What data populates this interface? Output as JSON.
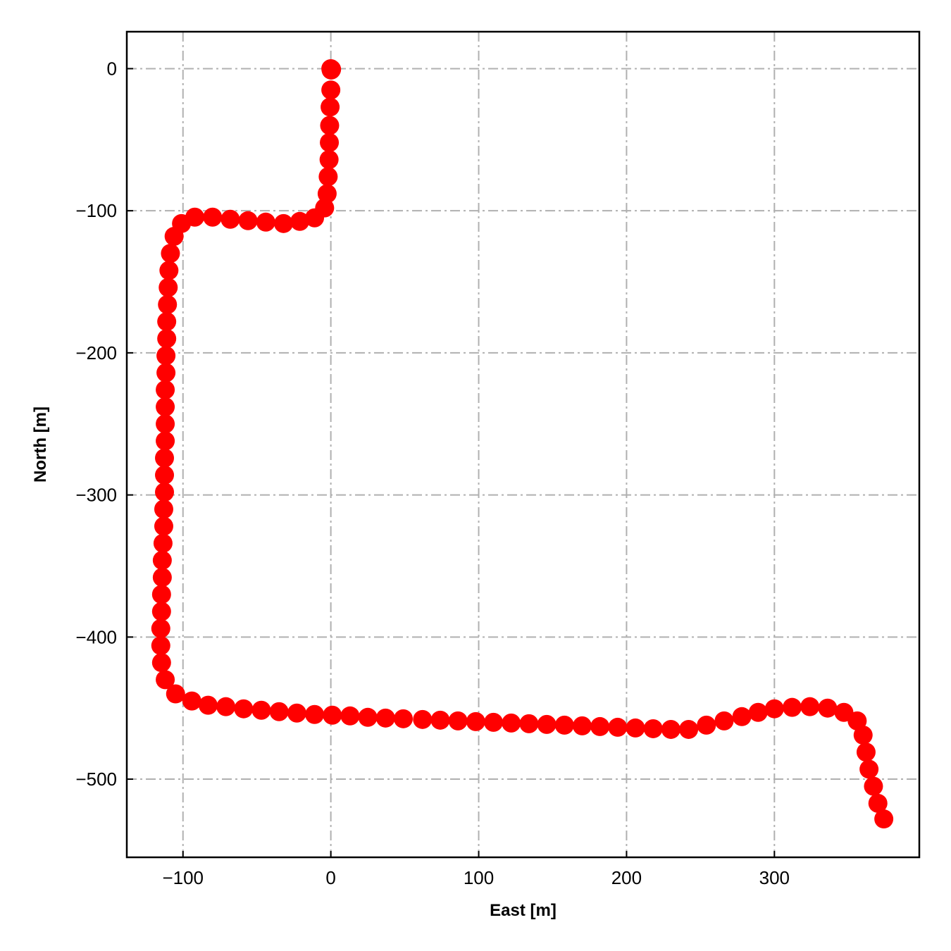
{
  "chart_data": {
    "type": "scatter",
    "title": "",
    "xlabel": "East [m]",
    "ylabel": "North [m]",
    "xlim": [
      -138,
      398
    ],
    "ylim": [
      -555,
      26
    ],
    "xticks": [
      -100,
      0,
      100,
      200,
      300
    ],
    "yticks": [
      0,
      -100,
      -200,
      -300,
      -400,
      -500
    ],
    "grid": true,
    "grid_style": "dash-dot",
    "marker_color": "#ff0000",
    "grid_color": "#b0b0b0",
    "series": [
      {
        "points": [
          [
            0,
            0
          ],
          [
            0.5,
            -0.5
          ],
          [
            0.2,
            -1
          ],
          [
            0,
            -15
          ],
          [
            -0.5,
            -27
          ],
          [
            -0.8,
            -40
          ],
          [
            -1,
            -52
          ],
          [
            -1.2,
            -64
          ],
          [
            -1.8,
            -76
          ],
          [
            -2.5,
            -88
          ],
          [
            -4.2,
            -98
          ],
          [
            -11,
            -105
          ],
          [
            -21,
            -107.5
          ],
          [
            -32,
            -109
          ],
          [
            -44,
            -108
          ],
          [
            -56,
            -107
          ],
          [
            -68,
            -106
          ],
          [
            -80,
            -104.5
          ],
          [
            -92,
            -104.5
          ],
          [
            -101,
            -109
          ],
          [
            -106,
            -118
          ],
          [
            -108.5,
            -130
          ],
          [
            -109.5,
            -142
          ],
          [
            -110,
            -154
          ],
          [
            -110.5,
            -166
          ],
          [
            -111,
            -178
          ],
          [
            -111,
            -190
          ],
          [
            -111.5,
            -202
          ],
          [
            -111.5,
            -214
          ],
          [
            -112,
            -226
          ],
          [
            -112,
            -238
          ],
          [
            -112,
            -250
          ],
          [
            -112,
            -262
          ],
          [
            -112.5,
            -274
          ],
          [
            -112.5,
            -286
          ],
          [
            -112.5,
            -298
          ],
          [
            -113,
            -310
          ],
          [
            -113,
            -322
          ],
          [
            -113.5,
            -334
          ],
          [
            -114,
            -346
          ],
          [
            -114,
            -358
          ],
          [
            -114.5,
            -370
          ],
          [
            -114.5,
            -382
          ],
          [
            -115,
            -394
          ],
          [
            -115,
            -406
          ],
          [
            -114.5,
            -418
          ],
          [
            -112,
            -430
          ],
          [
            -105,
            -440
          ],
          [
            -94,
            -445
          ],
          [
            -83,
            -448
          ],
          [
            -71,
            -449
          ],
          [
            -59,
            -450.5
          ],
          [
            -47,
            -451.5
          ],
          [
            -35,
            -452.5
          ],
          [
            -23,
            -453.5
          ],
          [
            -11,
            -454.5
          ],
          [
            1,
            -455
          ],
          [
            13,
            -455.5
          ],
          [
            25,
            -456.5
          ],
          [
            37,
            -457
          ],
          [
            49,
            -457.5
          ],
          [
            62,
            -458
          ],
          [
            74,
            -458.5
          ],
          [
            86,
            -459
          ],
          [
            98,
            -459.5
          ],
          [
            110,
            -460
          ],
          [
            122,
            -460.5
          ],
          [
            134,
            -461
          ],
          [
            146,
            -461.5
          ],
          [
            158,
            -462
          ],
          [
            170,
            -462.5
          ],
          [
            182,
            -463
          ],
          [
            194,
            -463.5
          ],
          [
            206,
            -464
          ],
          [
            218,
            -464.5
          ],
          [
            230,
            -465
          ],
          [
            242,
            -465
          ],
          [
            254,
            -462
          ],
          [
            266,
            -459
          ],
          [
            278,
            -456
          ],
          [
            289,
            -453
          ],
          [
            300,
            -450.5
          ],
          [
            312,
            -449.5
          ],
          [
            324,
            -449
          ],
          [
            336,
            -450
          ],
          [
            347,
            -453
          ],
          [
            356,
            -459
          ],
          [
            360,
            -469
          ],
          [
            362,
            -481
          ],
          [
            364,
            -493
          ],
          [
            367,
            -505
          ],
          [
            370,
            -517
          ],
          [
            374,
            -528
          ]
        ]
      }
    ]
  }
}
